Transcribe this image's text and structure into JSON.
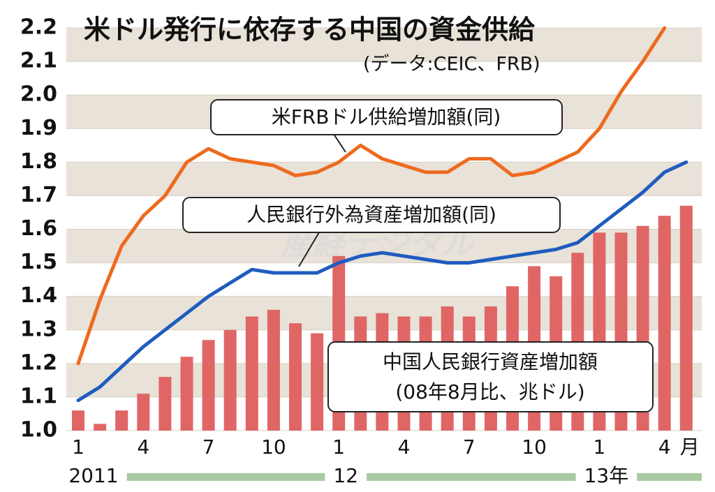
{
  "chart_data": {
    "type": "bar",
    "title": "米ドル発行に依存する中国の資金供給",
    "subtitle": "(データ:CEIC、FRB)",
    "watermark": "産経デジタル",
    "categories": [
      "1",
      null,
      null,
      "4",
      null,
      null,
      "7",
      null,
      null,
      "10",
      null,
      null,
      "1",
      null,
      null,
      "4",
      null,
      null,
      "7",
      null,
      null,
      "10",
      null,
      null,
      "1",
      null,
      null,
      "4",
      null
    ],
    "x_unit": "月",
    "year_labels": [
      "2011",
      null,
      null,
      null,
      null,
      null,
      null,
      null,
      null,
      null,
      null,
      null,
      "12",
      null,
      null,
      null,
      null,
      null,
      null,
      null,
      null,
      null,
      null,
      null,
      "13年",
      null,
      null,
      null,
      null
    ],
    "series": [
      {
        "name": "中国人民銀行資産増加額",
        "note": "(08年8月比、兆ドル)",
        "type": "bar",
        "color": "#e06666",
        "values": [
          1.06,
          1.02,
          1.06,
          1.11,
          1.16,
          1.22,
          1.27,
          1.3,
          1.34,
          1.36,
          1.32,
          1.29,
          1.52,
          1.34,
          1.35,
          1.34,
          1.34,
          1.37,
          1.34,
          1.37,
          1.43,
          1.49,
          1.46,
          1.53,
          1.59,
          1.59,
          1.61,
          1.64,
          1.67
        ]
      },
      {
        "name": "米FRBドル供給増加額(同)",
        "type": "line",
        "color": "#ee6a1e",
        "values": [
          1.2,
          1.39,
          1.55,
          1.64,
          1.7,
          1.8,
          1.84,
          1.81,
          1.8,
          1.79,
          1.76,
          1.77,
          1.8,
          1.85,
          1.81,
          1.79,
          1.77,
          1.77,
          1.81,
          1.81,
          1.76,
          1.77,
          1.8,
          1.83,
          1.9,
          2.01,
          2.1,
          2.2,
          null
        ]
      },
      {
        "name": "人民銀行外為資産増加額(同)",
        "type": "line",
        "color": "#1f5cbf",
        "values": [
          1.09,
          1.13,
          1.19,
          1.25,
          1.3,
          1.35,
          1.4,
          1.44,
          1.48,
          1.47,
          1.47,
          1.47,
          1.5,
          1.52,
          1.53,
          1.52,
          1.51,
          1.5,
          1.5,
          1.51,
          1.52,
          1.53,
          1.54,
          1.56,
          1.61,
          1.66,
          1.71,
          1.77,
          1.8
        ]
      }
    ],
    "ylim": [
      1,
      2.2
    ],
    "yticks": [
      {
        "value": 1,
        "label": "1.0"
      },
      1.1,
      1.2,
      1.3,
      1.4,
      1.5,
      1.6,
      1.7,
      1.8,
      1.9,
      {
        "value": 2,
        "label": "2.0"
      },
      2.1,
      2.2
    ],
    "striped": true
  }
}
